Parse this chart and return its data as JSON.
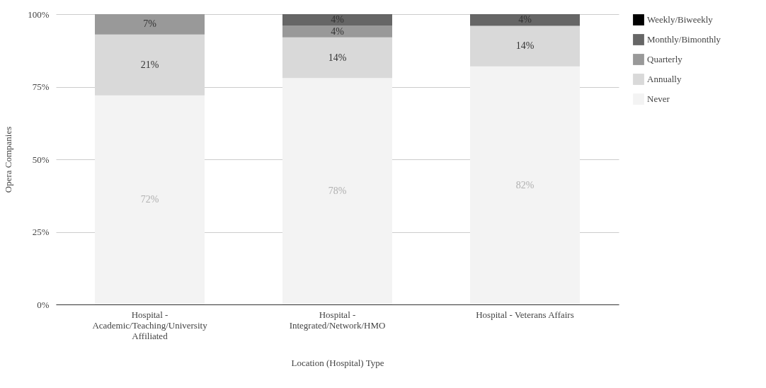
{
  "chart_data": {
    "type": "bar",
    "stacked": true,
    "xlabel": "Location (Hospital) Type",
    "ylabel": "Opera Companies",
    "categories": [
      "Hospital - Academic/Teaching/University Affiliated",
      "Hospital - Integrated/Network/HMO",
      "Hospital - Veterans Affairs"
    ],
    "series": [
      {
        "name": "Never",
        "color": "#f3f3f3",
        "values": [
          72,
          78,
          82
        ],
        "value_labels": [
          "72%",
          "78%",
          "82%"
        ]
      },
      {
        "name": "Annually",
        "color": "#d9d9d9",
        "values": [
          21,
          14,
          14
        ],
        "value_labels": [
          "21%",
          "14%",
          "14%"
        ]
      },
      {
        "name": "Quarterly",
        "color": "#999999",
        "values": [
          7,
          4,
          0
        ],
        "value_labels": [
          "7%",
          "4%",
          null
        ]
      },
      {
        "name": "Monthly/Bimonthly",
        "color": "#666666",
        "values": [
          0,
          4,
          4
        ],
        "value_labels": [
          null,
          "4%",
          "4%"
        ]
      },
      {
        "name": "Weekly/Biweekly",
        "color": "#000000",
        "values": [
          0,
          0,
          0
        ],
        "value_labels": [
          null,
          null,
          null
        ]
      }
    ],
    "ylim": [
      0,
      100
    ],
    "yticks": [
      {
        "value": 0,
        "label": "0%"
      },
      {
        "value": 25,
        "label": "25%"
      },
      {
        "value": 50,
        "label": "50%"
      },
      {
        "value": 75,
        "label": "75%"
      },
      {
        "value": 100,
        "label": "100%"
      }
    ],
    "grid": "y",
    "legend": "top right"
  }
}
